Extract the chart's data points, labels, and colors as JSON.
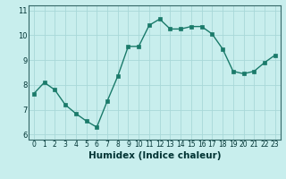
{
  "x": [
    0,
    1,
    2,
    3,
    4,
    5,
    6,
    7,
    8,
    9,
    10,
    11,
    12,
    13,
    14,
    15,
    16,
    17,
    18,
    19,
    20,
    21,
    22,
    23
  ],
  "y": [
    7.65,
    8.1,
    7.8,
    7.2,
    6.85,
    6.55,
    6.3,
    7.35,
    8.35,
    9.55,
    9.55,
    10.4,
    10.65,
    10.25,
    10.25,
    10.35,
    10.35,
    10.05,
    9.45,
    8.55,
    8.45,
    8.55,
    8.9,
    9.2
  ],
  "line_color": "#1a7a6a",
  "bg_color": "#c8eeed",
  "grid_color": "#a8d8d8",
  "xlabel": "Humidex (Indice chaleur)",
  "xlabel_fontsize": 7.5,
  "xlim": [
    -0.5,
    23.5
  ],
  "ylim": [
    5.8,
    11.2
  ],
  "yticks": [
    6,
    7,
    8,
    9,
    10,
    11
  ],
  "xticks": [
    0,
    1,
    2,
    3,
    4,
    5,
    6,
    7,
    8,
    9,
    10,
    11,
    12,
    13,
    14,
    15,
    16,
    17,
    18,
    19,
    20,
    21,
    22,
    23
  ],
  "xtick_labels": [
    "0",
    "1",
    "2",
    "3",
    "4",
    "5",
    "6",
    "7",
    "8",
    "9",
    "10",
    "11",
    "12",
    "13",
    "14",
    "15",
    "16",
    "17",
    "18",
    "19",
    "20",
    "21",
    "22",
    "23"
  ],
  "marker_size": 2.2,
  "line_width": 1.0,
  "tick_fontsize": 5.5,
  "ytick_fontsize": 6.0
}
